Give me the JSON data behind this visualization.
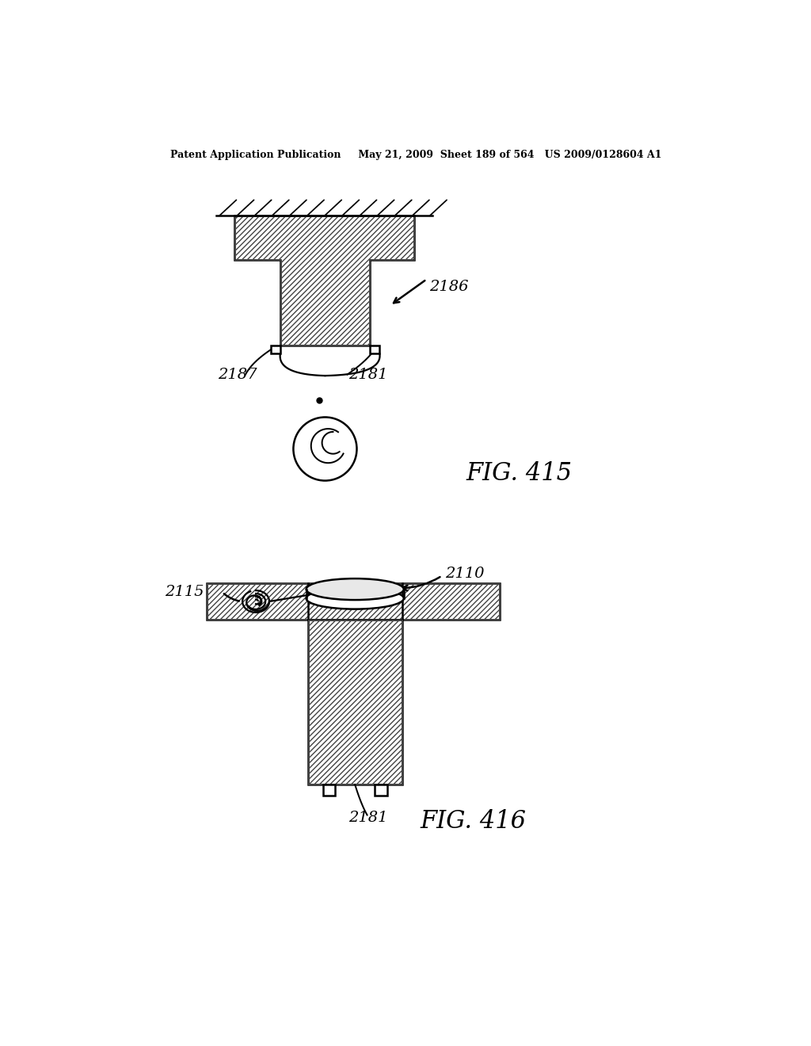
{
  "bg_color": "#ffffff",
  "line_color": "#000000",
  "header_text": "Patent Application Publication     May 21, 2009  Sheet 189 of 564   US 2009/0128604 A1",
  "fig415_label": "FIG. 415",
  "fig416_label": "FIG. 416",
  "label_2186": "2186",
  "label_2187": "2187",
  "label_2181_top": "2181",
  "label_2181_bot": "2181",
  "label_2115": "2115",
  "label_2110": "2110"
}
